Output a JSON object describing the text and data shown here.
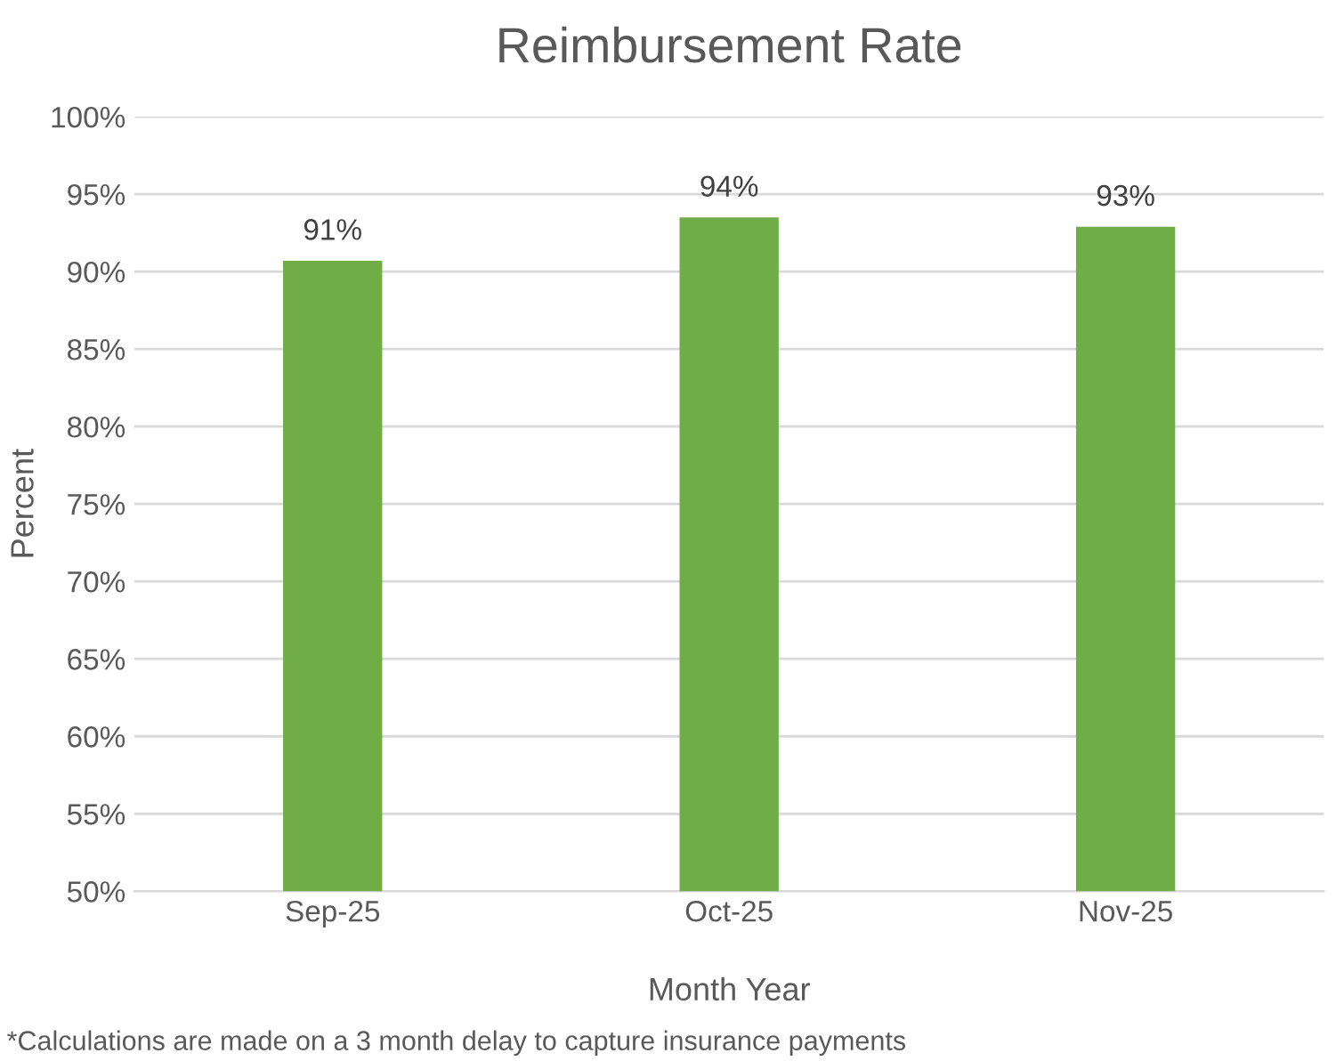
{
  "chart_data": {
    "type": "bar",
    "title": "Reimbursement Rate",
    "xlabel": "Month Year",
    "ylabel": "Percent",
    "categories": [
      "Sep-25",
      "Oct-25",
      "Nov-25"
    ],
    "values": [
      90.7,
      93.5,
      92.9
    ],
    "value_labels": [
      "91%",
      "94%",
      "93%"
    ],
    "color": "#70ad47",
    "ylim": [
      50,
      100
    ],
    "yticks": [
      {
        "value": 50,
        "label": "50%"
      },
      {
        "value": 55,
        "label": "55%"
      },
      {
        "value": 60,
        "label": "60%"
      },
      {
        "value": 65,
        "label": "65%"
      },
      {
        "value": 70,
        "label": "70%"
      },
      {
        "value": 75,
        "label": "75%"
      },
      {
        "value": 80,
        "label": "80%"
      },
      {
        "value": 85,
        "label": "85%"
      },
      {
        "value": 90,
        "label": "90%"
      },
      {
        "value": 95,
        "label": "95%"
      },
      {
        "value": 100,
        "label": "100%"
      }
    ],
    "grid": "y",
    "legend": false,
    "annotations": [
      "*Calculations are made on a 3 month delay to capture insurance payments"
    ]
  }
}
